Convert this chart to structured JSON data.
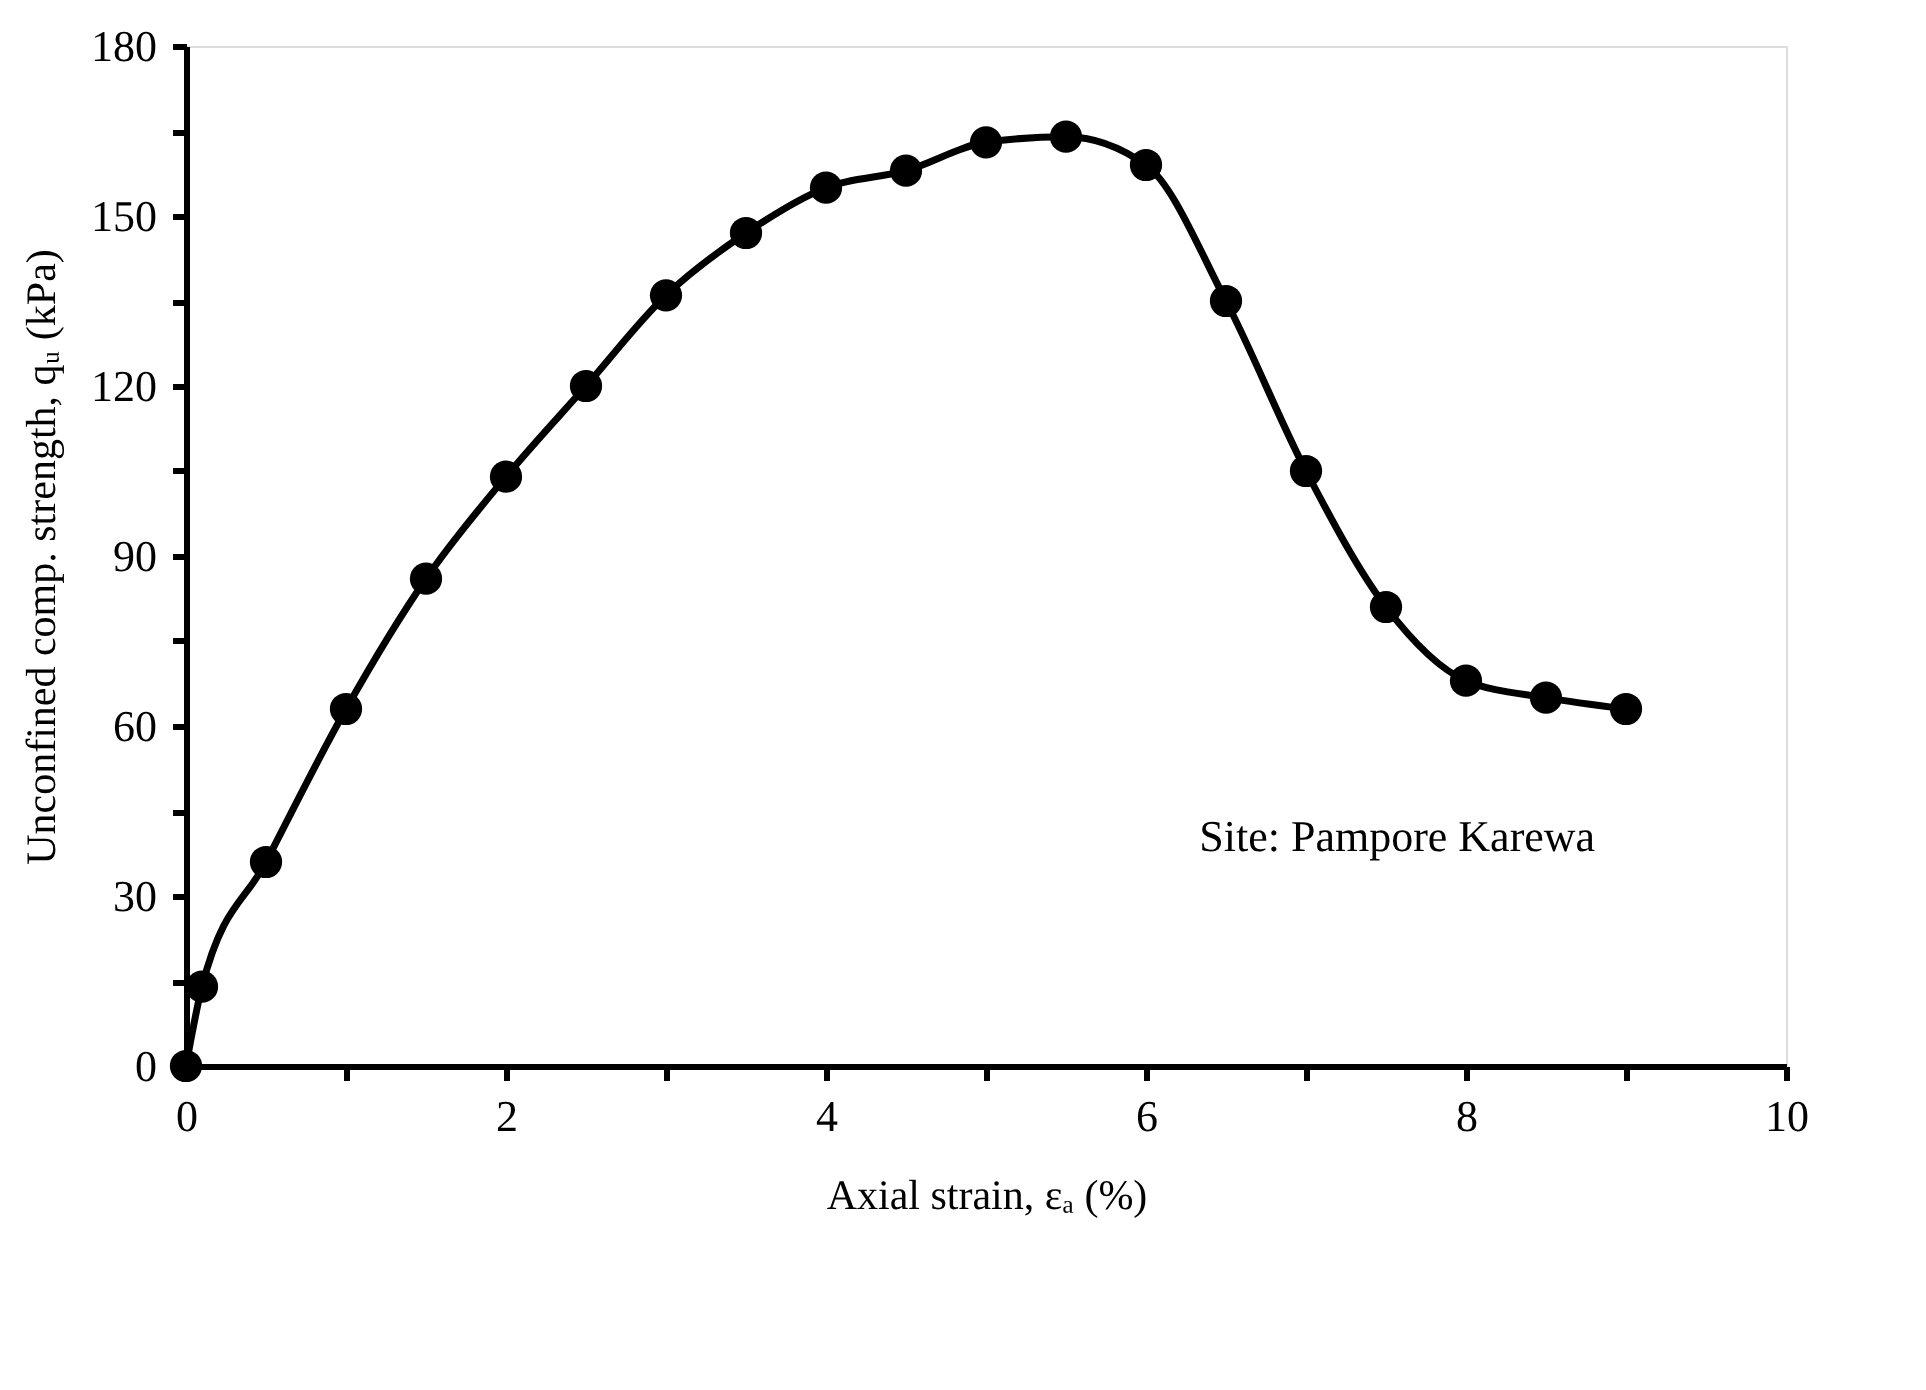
{
  "chart_data": {
    "type": "line",
    "xlabel": "Axial strain, εₐ (%)",
    "ylabel": "Unconfined comp. strength, qᵤ (kPa)",
    "x": [
      0,
      0.1,
      0.5,
      1,
      1.5,
      2,
      2.5,
      3,
      3.5,
      4,
      4.5,
      5,
      5.5,
      6,
      6.5,
      7,
      7.5,
      8,
      8.5,
      9
    ],
    "series": [
      {
        "color": "#000000",
        "values": [
          0,
          14,
          36,
          63,
          86,
          104,
          120,
          136,
          147,
          155,
          158,
          163,
          164,
          159,
          135,
          105,
          81,
          68,
          65,
          63
        ]
      }
    ],
    "xlim": [
      0,
      10
    ],
    "ylim": [
      0,
      180
    ],
    "xticks": [
      0,
      {
        "value": 1,
        "label": null
      },
      2,
      {
        "value": 3,
        "label": null
      },
      4,
      {
        "value": 5,
        "label": null
      },
      6,
      {
        "value": 7,
        "label": null
      },
      8,
      {
        "value": 9,
        "label": null
      },
      10
    ],
    "yticks": [
      0,
      {
        "value": 15,
        "label": null
      },
      30,
      {
        "value": 45,
        "label": null
      },
      60,
      {
        "value": 75,
        "label": null
      },
      90,
      {
        "value": 105,
        "label": null
      },
      120,
      {
        "value": 135,
        "label": null
      },
      150,
      {
        "value": 165,
        "label": null
      },
      180
    ],
    "annotations": [
      "Site: Pampore Karewa"
    ],
    "grid": false,
    "marker": "circle",
    "line_style": "solid"
  }
}
